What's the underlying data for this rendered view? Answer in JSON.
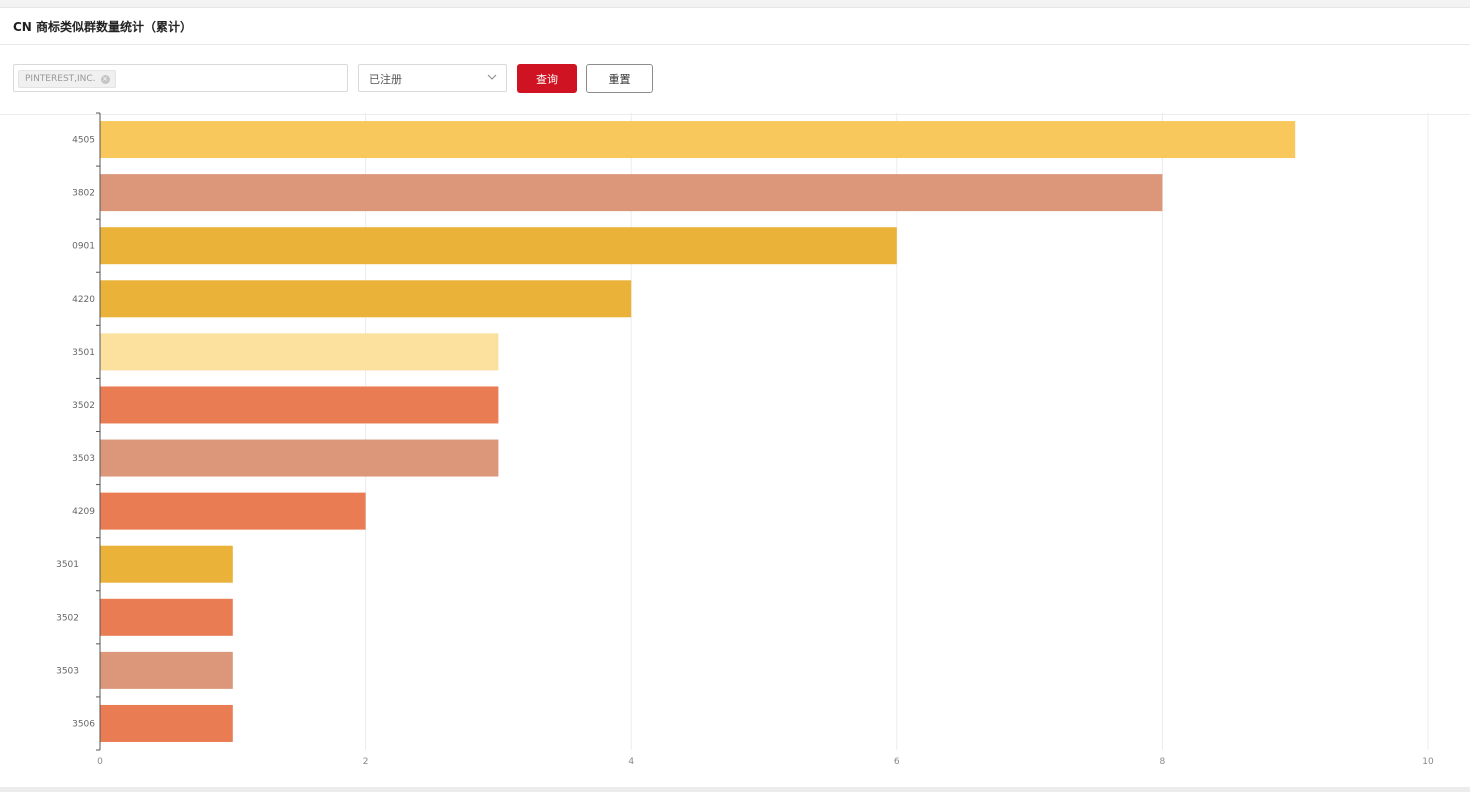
{
  "header": {
    "title": "CN 商标类似群数量统计（累计）"
  },
  "filters": {
    "company_tag": "PINTEREST,INC.",
    "tag_close_glyph": "×",
    "status_value": "已注册",
    "query_label": "查询",
    "reset_label": "重置"
  },
  "chart_data": {
    "type": "bar",
    "orientation": "horizontal",
    "categories": [
      "4505",
      "3802",
      "0901",
      "4220",
      "3501",
      "3502",
      "3503",
      "4209",
      "3501",
      "3502",
      "3503",
      "3506"
    ],
    "values": [
      9,
      8,
      6,
      4,
      3,
      3,
      3,
      2,
      1,
      1,
      1,
      1
    ],
    "colors": [
      "#f8c85c",
      "#dc977b",
      "#eab238",
      "#eab238",
      "#fbe09e",
      "#e97c52",
      "#dc977b",
      "#e97c52",
      "#eab238",
      "#e97c52",
      "#dc977b",
      "#e97c52"
    ],
    "xlim": [
      0,
      10
    ],
    "xticks": [
      0,
      2,
      4,
      6,
      8,
      10
    ],
    "grid": true,
    "title": "",
    "xlabel": "",
    "ylabel": ""
  }
}
